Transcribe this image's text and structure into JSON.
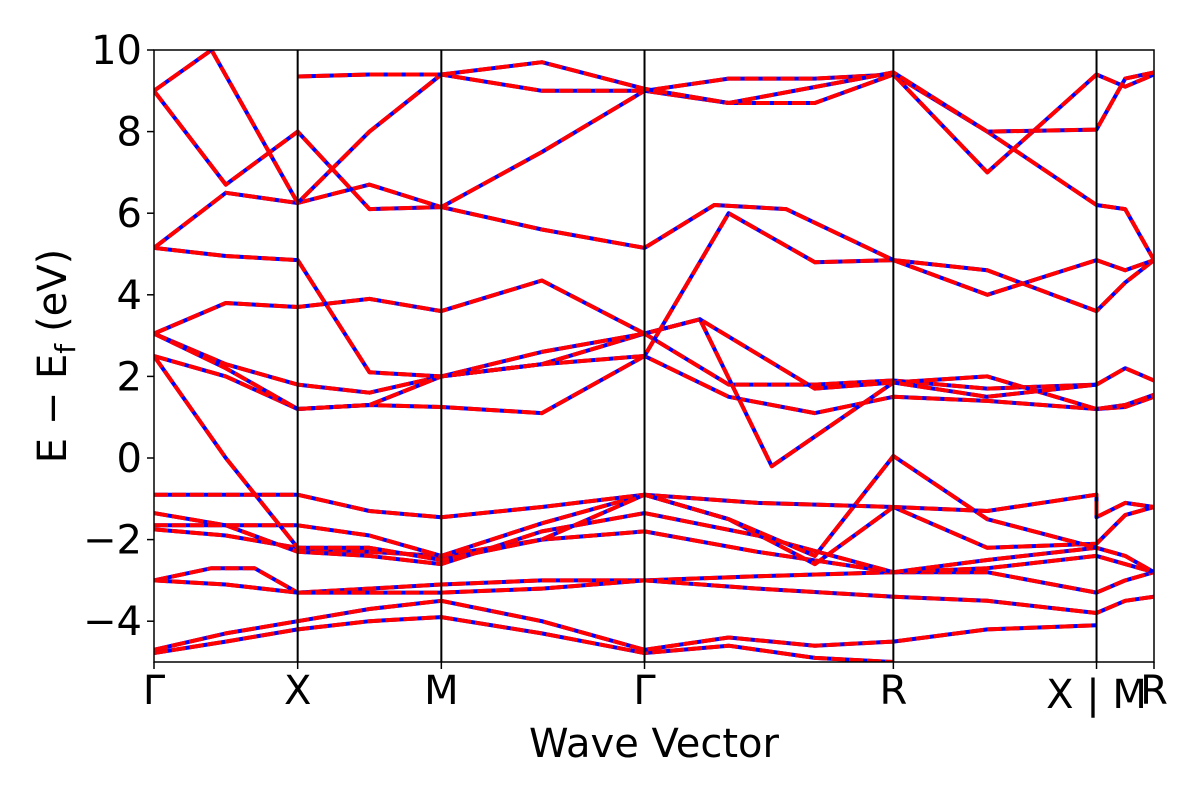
{
  "chart_data": {
    "type": "line",
    "xlabel": "Wave Vector",
    "ylabel": "E − E",
    "ylabel_sub": "f",
    "ylabel_unit": "(eV)",
    "ylim": [
      -5,
      10
    ],
    "yticks": [
      -4,
      -2,
      0,
      2,
      4,
      6,
      8,
      10
    ],
    "ytick_labels": [
      "−4",
      "−2",
      "0",
      "2",
      "4",
      "6",
      "8",
      "10"
    ],
    "kpath_labels": [
      "Γ",
      "X",
      "M",
      "Γ",
      "R",
      "X | M",
      "R"
    ],
    "kpath_positions": [
      0,
      0.5,
      1.0,
      1.7071,
      2.5731,
      3.2802,
      3.4802
    ],
    "grid": false,
    "legend": "none",
    "colors": {
      "band_solid": "#0000ff",
      "band_dashed": "#ff0000",
      "segment_line": "#000000"
    },
    "series": [
      {
        "values": [
          [
            0,
            -4.78
          ],
          [
            0.25,
            -4.5
          ],
          [
            0.5,
            -4.2
          ],
          [
            0.75,
            -4.0
          ],
          [
            1.0,
            -3.9
          ],
          [
            1.35,
            -4.3
          ],
          [
            1.7071,
            -4.78
          ],
          [
            2.0,
            -4.6
          ],
          [
            2.3,
            -4.9
          ],
          [
            2.5731,
            -5.0
          ]
        ]
      },
      {
        "values": [
          [
            0,
            -4.7
          ],
          [
            0.25,
            -4.3
          ],
          [
            0.5,
            -4.0
          ],
          [
            0.75,
            -3.7
          ],
          [
            1.0,
            -3.5
          ],
          [
            1.35,
            -4.0
          ],
          [
            1.7071,
            -4.7
          ],
          [
            2.0,
            -4.4
          ],
          [
            2.3,
            -4.6
          ],
          [
            2.5731,
            -4.5
          ],
          [
            2.9,
            -4.2
          ],
          [
            3.2802,
            -4.1
          ]
        ]
      },
      {
        "values": [
          [
            0,
            -3.0
          ],
          [
            0.2,
            -2.7
          ],
          [
            0.35,
            -2.7
          ],
          [
            0.5,
            -3.3
          ],
          [
            0.75,
            -3.2
          ],
          [
            1.0,
            -3.1
          ],
          [
            1.35,
            -3.0
          ],
          [
            1.7071,
            -3.0
          ],
          [
            2.1,
            -2.9
          ],
          [
            2.5731,
            -2.8
          ],
          [
            2.9,
            -2.8
          ],
          [
            3.2802,
            -3.3
          ],
          [
            3.38,
            -3.0
          ],
          [
            3.4802,
            -2.8
          ]
        ]
      },
      {
        "values": [
          [
            0,
            -3.0
          ],
          [
            0.25,
            -3.1
          ],
          [
            0.5,
            -3.3
          ],
          [
            0.75,
            -3.3
          ],
          [
            1.0,
            -3.3
          ],
          [
            1.35,
            -3.2
          ],
          [
            1.7071,
            -3.0
          ],
          [
            2.1,
            -3.2
          ],
          [
            2.5731,
            -3.4
          ],
          [
            2.9,
            -3.5
          ],
          [
            3.2802,
            -3.8
          ],
          [
            3.38,
            -3.5
          ],
          [
            3.4802,
            -3.4
          ]
        ]
      },
      {
        "values": [
          [
            0,
            -1.75
          ],
          [
            0.25,
            -1.9
          ],
          [
            0.5,
            -2.2
          ],
          [
            0.75,
            -2.3
          ],
          [
            1.0,
            -2.4
          ],
          [
            1.35,
            -2.0
          ],
          [
            1.7071,
            -1.8
          ],
          [
            2.1,
            -2.3
          ],
          [
            2.5731,
            -2.8
          ],
          [
            2.9,
            -2.7
          ],
          [
            3.2802,
            -2.4
          ],
          [
            3.38,
            -2.6
          ],
          [
            3.4802,
            -2.8
          ]
        ]
      },
      {
        "values": [
          [
            0,
            -1.35
          ],
          [
            0.25,
            -1.65
          ],
          [
            0.5,
            -2.3
          ],
          [
            0.75,
            -2.4
          ],
          [
            1.0,
            -2.6
          ],
          [
            1.35,
            -1.8
          ],
          [
            1.7071,
            -1.35
          ],
          [
            2.1,
            -1.9
          ],
          [
            2.5731,
            -2.8
          ],
          [
            2.9,
            -2.5
          ],
          [
            3.2802,
            -2.2
          ],
          [
            3.38,
            -2.4
          ],
          [
            3.4802,
            -2.8
          ]
        ]
      },
      {
        "values": [
          [
            0,
            -1.65
          ],
          [
            0.25,
            -1.65
          ],
          [
            0.5,
            -1.65
          ],
          [
            0.75,
            -1.9
          ],
          [
            1.0,
            -2.4
          ],
          [
            1.35,
            -1.6
          ],
          [
            1.7071,
            -0.9
          ],
          [
            2.0,
            -1.5
          ],
          [
            2.3,
            -2.6
          ],
          [
            2.5731,
            -1.2
          ],
          [
            2.9,
            -2.2
          ],
          [
            3.2802,
            -2.1
          ],
          [
            3.38,
            -1.4
          ],
          [
            3.4802,
            -1.2
          ]
        ]
      },
      {
        "values": [
          [
            0,
            -0.9
          ],
          [
            0.25,
            -0.9
          ],
          [
            0.5,
            -0.9
          ],
          [
            0.75,
            -1.3
          ],
          [
            1.0,
            -1.45
          ],
          [
            1.35,
            -1.2
          ],
          [
            1.7071,
            -0.9
          ],
          [
            2.1,
            -1.1
          ],
          [
            2.5731,
            -1.2
          ],
          [
            2.9,
            -1.3
          ],
          [
            3.2802,
            -0.9
          ],
          [
            3.2802,
            -1.45
          ],
          [
            3.38,
            -1.1
          ],
          [
            3.4802,
            -1.2
          ]
        ]
      },
      {
        "values": [
          [
            0,
            2.5
          ],
          [
            0.25,
            0.0
          ],
          [
            0.5,
            -2.2
          ],
          [
            0.75,
            -2.2
          ],
          [
            1.0,
            -2.5
          ],
          [
            1.35,
            -2.0
          ],
          [
            1.7071,
            -0.9
          ],
          [
            2.0,
            -1.5
          ],
          [
            2.3,
            -2.4
          ],
          [
            2.5731,
            0.05
          ],
          [
            2.9,
            -1.5
          ],
          [
            3.2802,
            -2.2
          ]
        ]
      },
      {
        "values": [
          [
            0,
            2.5
          ],
          [
            0.25,
            2.0
          ],
          [
            0.5,
            1.2
          ],
          [
            0.75,
            1.3
          ],
          [
            1.0,
            1.25
          ],
          [
            1.35,
            1.1
          ],
          [
            1.7071,
            2.5
          ],
          [
            2.0,
            1.5
          ],
          [
            2.3,
            1.1
          ],
          [
            2.5731,
            1.5
          ],
          [
            2.9,
            1.4
          ],
          [
            3.2802,
            1.2
          ],
          [
            3.38,
            1.25
          ],
          [
            3.4802,
            1.5
          ]
        ]
      },
      {
        "values": [
          [
            0,
            3.05
          ],
          [
            0.25,
            2.3
          ],
          [
            0.5,
            1.8
          ],
          [
            0.75,
            1.6
          ],
          [
            1.0,
            2.0
          ],
          [
            1.35,
            2.3
          ],
          [
            1.7071,
            3.05
          ],
          [
            2.0,
            1.8
          ],
          [
            2.3,
            1.8
          ],
          [
            2.5731,
            1.9
          ],
          [
            2.9,
            1.7
          ],
          [
            3.2802,
            1.8
          ],
          [
            3.38,
            2.2
          ],
          [
            3.4802,
            1.9
          ]
        ]
      },
      {
        "values": [
          [
            0,
            3.05
          ],
          [
            0.25,
            2.2
          ],
          [
            0.5,
            1.2
          ],
          [
            0.75,
            1.3
          ],
          [
            1.0,
            2.0
          ],
          [
            1.35,
            2.6
          ],
          [
            1.7071,
            3.05
          ],
          [
            1.9,
            3.4
          ],
          [
            2.15,
            -0.2
          ],
          [
            2.5731,
            1.85
          ],
          [
            2.9,
            2.0
          ],
          [
            3.2802,
            1.2
          ],
          [
            3.38,
            1.3
          ],
          [
            3.4802,
            1.55
          ]
        ]
      },
      {
        "values": [
          [
            0,
            3.05
          ],
          [
            0.25,
            3.8
          ],
          [
            0.5,
            3.7
          ],
          [
            0.75,
            3.9
          ],
          [
            1.0,
            3.6
          ],
          [
            1.35,
            4.35
          ],
          [
            1.7071,
            3.05
          ],
          [
            1.9,
            3.4
          ],
          [
            2.3,
            1.7
          ],
          [
            2.5731,
            1.85
          ],
          [
            2.9,
            1.5
          ],
          [
            3.2802,
            1.8
          ]
        ]
      },
      {
        "values": [
          [
            0,
            5.15
          ],
          [
            0.25,
            4.95
          ],
          [
            0.5,
            4.85
          ],
          [
            0.75,
            2.1
          ],
          [
            1.0,
            2.0
          ],
          [
            1.35,
            2.3
          ],
          [
            1.7071,
            2.5
          ],
          [
            2.0,
            6.0
          ],
          [
            2.3,
            4.8
          ],
          [
            2.5731,
            4.85
          ],
          [
            2.9,
            4.6
          ],
          [
            3.2802,
            3.6
          ],
          [
            3.38,
            4.3
          ],
          [
            3.4802,
            4.85
          ]
        ]
      },
      {
        "values": [
          [
            0,
            5.15
          ],
          [
            0.25,
            6.5
          ],
          [
            0.5,
            6.25
          ],
          [
            0.75,
            6.7
          ],
          [
            1.0,
            6.15
          ],
          [
            1.35,
            5.6
          ],
          [
            1.7071,
            5.15
          ],
          [
            1.95,
            6.2
          ],
          [
            2.2,
            6.1
          ],
          [
            2.5731,
            4.85
          ],
          [
            2.9,
            4.0
          ],
          [
            3.2802,
            4.85
          ],
          [
            3.38,
            4.6
          ],
          [
            3.4802,
            4.85
          ]
        ]
      },
      {
        "values": [
          [
            0,
            9.0
          ],
          [
            0.25,
            6.7
          ],
          [
            0.5,
            8.0
          ],
          [
            0.75,
            6.1
          ],
          [
            1.0,
            6.15
          ],
          [
            1.35,
            7.5
          ],
          [
            1.7071,
            9.0
          ],
          [
            2.0,
            9.3
          ],
          [
            2.3,
            9.3
          ],
          [
            2.5731,
            9.4
          ],
          [
            2.9,
            8.0
          ],
          [
            3.2802,
            6.2
          ],
          [
            3.38,
            6.1
          ],
          [
            3.4802,
            4.85
          ]
        ]
      },
      {
        "values": [
          [
            0,
            9.0
          ],
          [
            0.2,
            10.0
          ],
          [
            0.5,
            6.25
          ],
          [
            0.75,
            8.0
          ],
          [
            1.0,
            9.4
          ],
          [
            1.35,
            9.0
          ],
          [
            1.7071,
            9.0
          ],
          [
            2.0,
            8.7
          ],
          [
            2.3,
            8.7
          ],
          [
            2.5731,
            9.4
          ],
          [
            2.9,
            7.0
          ],
          [
            3.2802,
            9.4
          ],
          [
            3.38,
            9.1
          ],
          [
            3.4802,
            9.4
          ]
        ]
      },
      {
        "values": [
          [
            0.5,
            9.35
          ],
          [
            0.75,
            9.4
          ],
          [
            1.0,
            9.4
          ],
          [
            1.35,
            9.7
          ],
          [
            1.7071,
            9.05
          ],
          [
            2.0,
            8.7
          ],
          [
            2.5731,
            9.45
          ],
          [
            2.9,
            8.0
          ],
          [
            3.2802,
            8.05
          ],
          [
            3.38,
            9.3
          ],
          [
            3.4802,
            9.45
          ]
        ]
      }
    ]
  }
}
